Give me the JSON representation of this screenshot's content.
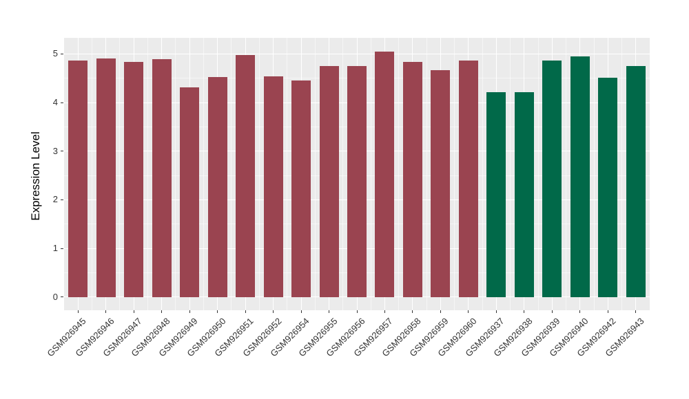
{
  "chart_data": {
    "type": "bar",
    "title": "",
    "xlabel": "",
    "ylabel": "Expression Level",
    "y_ticks": [
      0,
      1,
      2,
      3,
      4,
      5
    ],
    "y_minor_ticks": [
      0.5,
      1.5,
      2.5,
      3.5,
      4.5
    ],
    "ylim": [
      -0.27,
      5.33
    ],
    "grid": "major-and-minor, white on gray panel",
    "legend": "none",
    "panel_bg": "#EBEBEB",
    "grid_color": "#FFFFFF",
    "group_colors": {
      "red": "#9A4450",
      "green": "#016949"
    },
    "bar_width_frac": 0.7,
    "bars": [
      {
        "label": "GSM926945",
        "value": 4.87,
        "color": "#9A4450"
      },
      {
        "label": "GSM926946",
        "value": 4.91,
        "color": "#9A4450"
      },
      {
        "label": "GSM926947",
        "value": 4.84,
        "color": "#9A4450"
      },
      {
        "label": "GSM926948",
        "value": 4.89,
        "color": "#9A4450"
      },
      {
        "label": "GSM926949",
        "value": 4.31,
        "color": "#9A4450"
      },
      {
        "label": "GSM926950",
        "value": 4.53,
        "color": "#9A4450"
      },
      {
        "label": "GSM926951",
        "value": 4.98,
        "color": "#9A4450"
      },
      {
        "label": "GSM926952",
        "value": 4.54,
        "color": "#9A4450"
      },
      {
        "label": "GSM926954",
        "value": 4.45,
        "color": "#9A4450"
      },
      {
        "label": "GSM926955",
        "value": 4.75,
        "color": "#9A4450"
      },
      {
        "label": "GSM926956",
        "value": 4.75,
        "color": "#9A4450"
      },
      {
        "label": "GSM926957",
        "value": 5.05,
        "color": "#9A4450"
      },
      {
        "label": "GSM926958",
        "value": 4.84,
        "color": "#9A4450"
      },
      {
        "label": "GSM926959",
        "value": 4.67,
        "color": "#9A4450"
      },
      {
        "label": "GSM926960",
        "value": 4.87,
        "color": "#9A4450"
      },
      {
        "label": "GSM926937",
        "value": 4.21,
        "color": "#016949"
      },
      {
        "label": "GSM926938",
        "value": 4.21,
        "color": "#016949"
      },
      {
        "label": "GSM926939",
        "value": 4.87,
        "color": "#016949"
      },
      {
        "label": "GSM926940",
        "value": 4.95,
        "color": "#016949"
      },
      {
        "label": "GSM926942",
        "value": 4.51,
        "color": "#016949"
      },
      {
        "label": "GSM926943",
        "value": 4.75,
        "color": "#016949"
      }
    ]
  }
}
